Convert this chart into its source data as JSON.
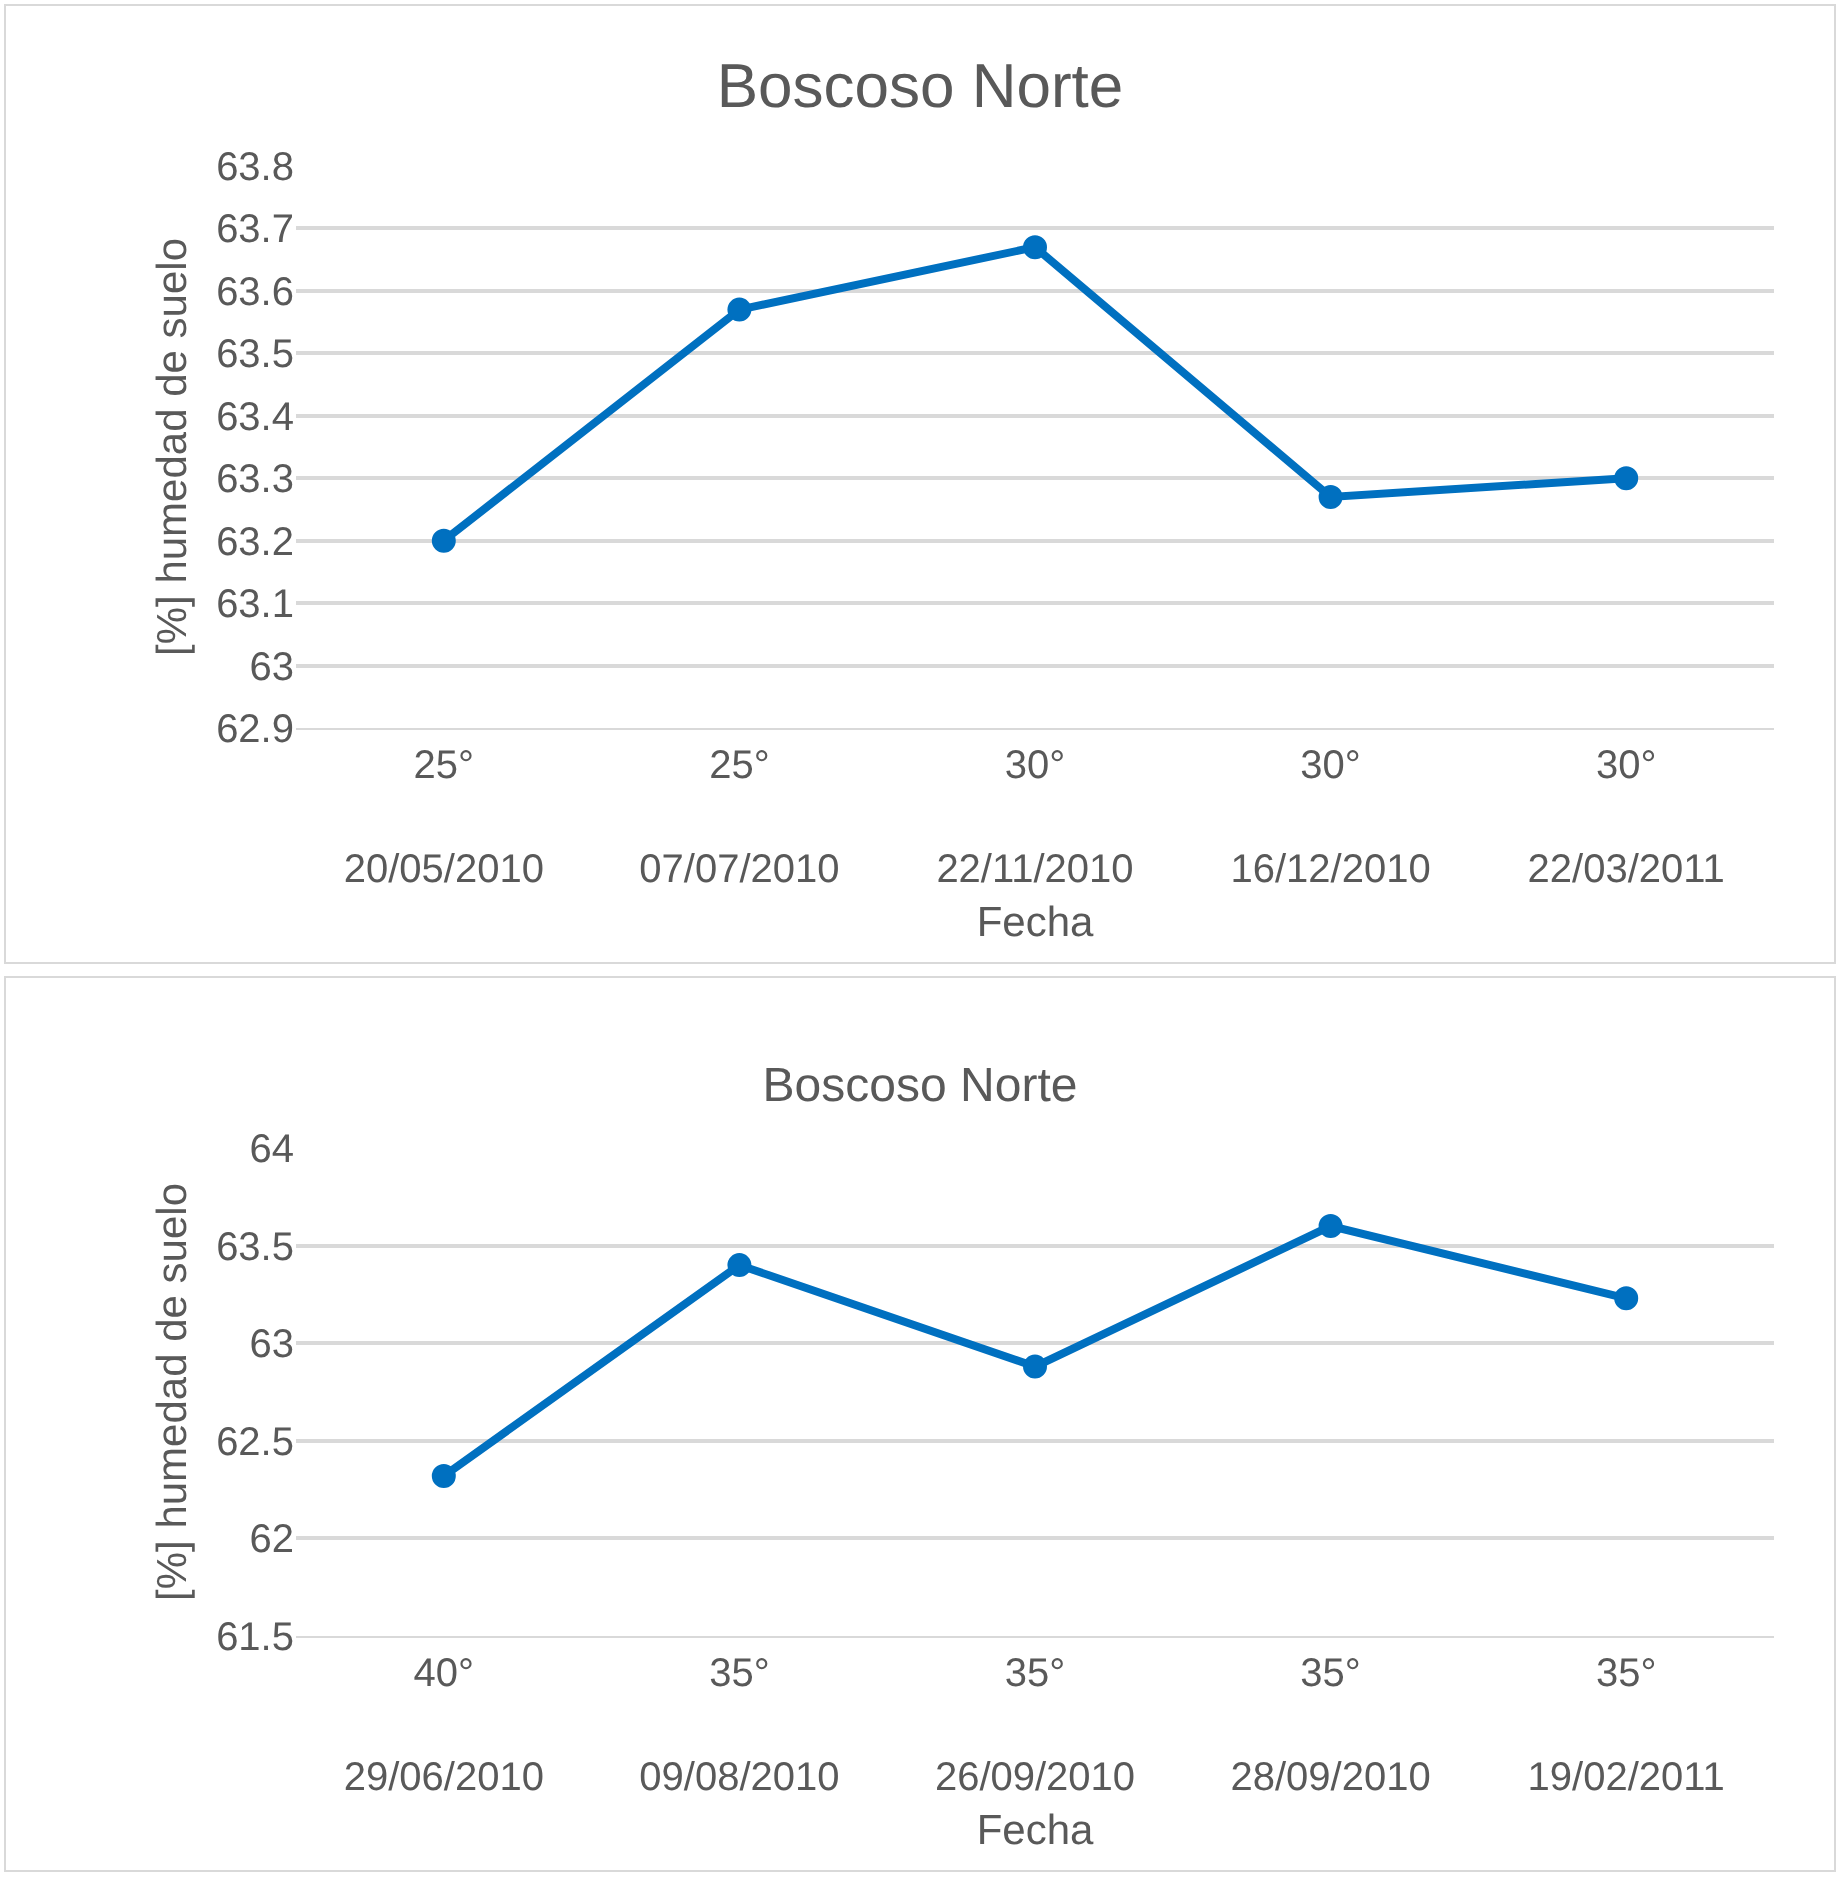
{
  "chart_data": [
    {
      "type": "line",
      "title": "Boscoso Norte",
      "xlabel": "Fecha",
      "ylabel": "[%] humedad de suelo",
      "categories": [
        "25°\n20/05/2010",
        "25°\n07/07/2010",
        "30°\n22/11/2010",
        "30°\n16/12/2010",
        "30°\n22/03/2011"
      ],
      "series": [
        {
          "color": "#0070c0",
          "values": [
            63.2,
            63.57,
            63.67,
            63.27,
            63.3
          ]
        }
      ],
      "ylim": [
        62.9,
        63.8
      ],
      "yticks": [
        62.9,
        63,
        63.1,
        63.2,
        63.3,
        63.4,
        63.5,
        63.6,
        63.7,
        63.8
      ],
      "grid": "y",
      "marker": "circle"
    },
    {
      "type": "line",
      "title": "Boscoso Norte",
      "xlabel": "Fecha",
      "ylabel": "[%] humedad de suelo",
      "categories": [
        "40°\n29/06/2010",
        "35°\n09/08/2010",
        "35°\n26/09/2010",
        "35°\n28/09/2010",
        "35°\n19/02/2011"
      ],
      "series": [
        {
          "color": "#0070c0",
          "values": [
            62.32,
            63.4,
            62.88,
            63.6,
            63.23
          ]
        }
      ],
      "ylim": [
        61.5,
        64
      ],
      "yticks": [
        61.5,
        62,
        62.5,
        63,
        63.5,
        64
      ],
      "grid": "y",
      "marker": "circle"
    }
  ]
}
